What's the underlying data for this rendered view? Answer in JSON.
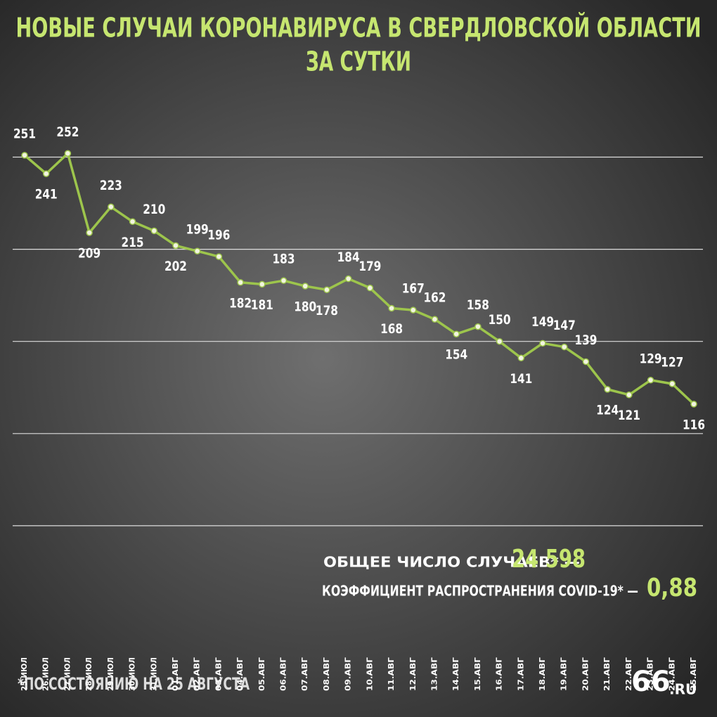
{
  "chart_data": {
    "type": "line",
    "title": [
      "НОВЫЕ СЛУЧАИ КОРОНАВИРУСА В СВЕРДЛОВСКОЙ ОБЛАСТИ",
      "ЗА СУТКИ"
    ],
    "categories": [
      "25.ИЮЛ",
      "26.ИЮЛ",
      "27.ИЮЛ",
      "28.ИЮЛ",
      "29.ИЮЛ",
      "30.ИЮЛ",
      "31.ИЮЛ",
      "01.АВГ",
      "02.АВГ",
      "03.АВГ",
      "04.АВГ",
      "05.АВГ",
      "06.АВГ",
      "07.АВГ",
      "08.АВГ",
      "09.АВГ",
      "10.АВГ",
      "11.АВГ",
      "12.АВГ",
      "13.АВГ",
      "14.АВГ",
      "15.АВГ",
      "16.АВГ",
      "17.АВГ",
      "18.АВГ",
      "19.АВГ",
      "20.АВГ",
      "21.АВГ",
      "22.АВГ",
      "23.АВГ",
      "24.АВГ",
      "25.АВГ"
    ],
    "values": [
      251,
      241,
      252,
      209,
      223,
      215,
      210,
      202,
      199,
      196,
      182,
      181,
      183,
      180,
      178,
      184,
      179,
      168,
      167,
      162,
      154,
      158,
      150,
      141,
      149,
      147,
      139,
      124,
      121,
      129,
      127,
      116
    ],
    "color": "#9dc54c",
    "ylim": [
      0,
      300
    ],
    "yticks": [
      50,
      100,
      150,
      200,
      250
    ],
    "grid": true,
    "annotations": [
      {
        "label": "ОБЩЕЕ ЧИСЛО СЛУЧАЕВ* —",
        "value": "24 598"
      },
      {
        "label": "КОЭФФИЦИЕНТ РАСПРОСТРАНЕНИЯ COVID-19* —",
        "value": "0,88"
      }
    ],
    "footnote": "*ПО СОСТОЯНИЮ НА 25 АВГУСТА",
    "logo": [
      "66",
      ".RU"
    ]
  }
}
